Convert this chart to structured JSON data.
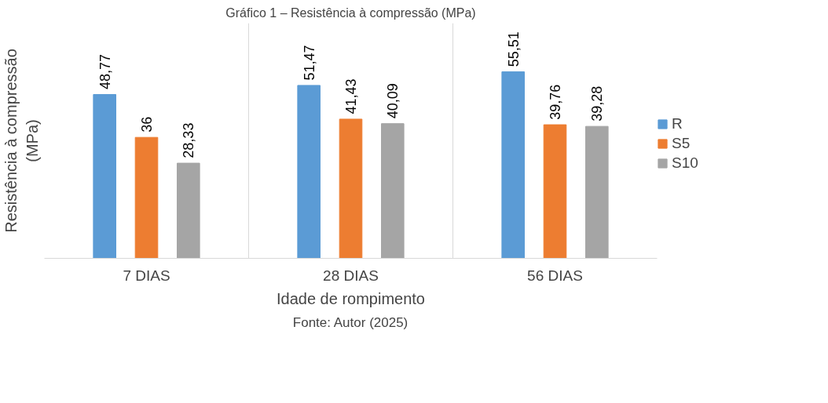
{
  "chart_data": {
    "type": "bar",
    "title": "Gráfico 1 – Resistência à compressão (MPa)",
    "xlabel": "Idade de rompimento",
    "ylabel": "Resistência à compressão (MPa)",
    "categories": [
      "7 DIAS",
      "28 DIAS",
      "56 DIAS"
    ],
    "series": [
      {
        "name": "R",
        "color": "#5b9bd5",
        "values": [
          48.77,
          51.47,
          55.51
        ],
        "value_labels": [
          "48,77",
          "51,47",
          "55,51"
        ]
      },
      {
        "name": "S5",
        "color": "#ed7d31",
        "values": [
          36,
          41.43,
          39.76
        ],
        "value_labels": [
          "36",
          "41,43",
          "39,76"
        ]
      },
      {
        "name": "S10",
        "color": "#a5a5a5",
        "values": [
          28.33,
          40.09,
          39.28
        ],
        "value_labels": [
          "28,33",
          "40,09",
          "39,28"
        ]
      }
    ],
    "ylim": [
      0,
      70
    ],
    "grid": "x",
    "legend": "right",
    "tick_labels": "x",
    "annotations": [
      "Fonte: Autor (2025)"
    ]
  }
}
